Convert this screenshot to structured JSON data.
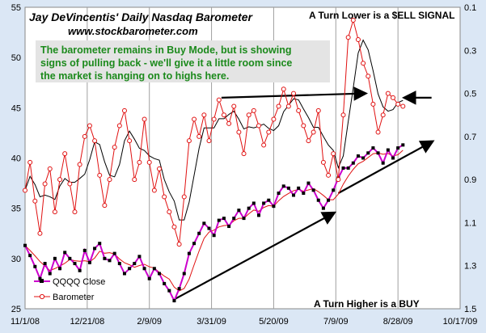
{
  "chart_data": {
    "type": "line",
    "title": "Jay DeVincentis' Daily Nasdaq Barometer",
    "subtitle": "www.stockbarometer.com",
    "left_axis": {
      "min": 25,
      "max": 55,
      "ticks": [
        "25",
        "30",
        "35",
        "40",
        "45",
        "50",
        "55"
      ]
    },
    "right_axis": {
      "min": 0.1,
      "max": 1.5,
      "inverted": true,
      "ticks": [
        "0.1",
        "0.3",
        "0.5",
        "0.7",
        "0.9",
        "1.1",
        "1.3",
        "1.5"
      ]
    },
    "x_ticks": [
      "11/1/08",
      "12/21/08",
      "2/9/09",
      "3/31/09",
      "5/20/09",
      "7/9/09",
      "8/28/09",
      "10/17/09"
    ],
    "x_tick_days": [
      0,
      50,
      100,
      150,
      200,
      250,
      300,
      350
    ],
    "grid": "vertical",
    "legend_position": "bottom-left",
    "series": [
      {
        "name": "QQQQ Close",
        "axis": "left",
        "color": "#cc00cc",
        "x": [
          0,
          4,
          8,
          12,
          16,
          20,
          24,
          28,
          32,
          36,
          40,
          44,
          48,
          52,
          56,
          60,
          64,
          68,
          72,
          76,
          80,
          84,
          88,
          92,
          96,
          100,
          104,
          108,
          112,
          116,
          120,
          124,
          128,
          132,
          136,
          140,
          144,
          148,
          152,
          156,
          160,
          164,
          168,
          172,
          176,
          180,
          184,
          188,
          192,
          196,
          200,
          204,
          208,
          212,
          216,
          220,
          224,
          228,
          232,
          236,
          240,
          244,
          248,
          252,
          256,
          260,
          264,
          268,
          272,
          276,
          280,
          284,
          288,
          292,
          296,
          300,
          304
        ],
        "values": [
          31.3,
          30.3,
          29.2,
          28.0,
          29.5,
          28.5,
          30.0,
          29.0,
          30.6,
          30.0,
          29.5,
          28.8,
          30.8,
          29.6,
          31.0,
          31.5,
          30.0,
          29.8,
          30.5,
          29.5,
          28.5,
          29.0,
          29.5,
          30.2,
          29.0,
          28.0,
          29.0,
          28.5,
          27.5,
          26.8,
          25.8,
          27.0,
          28.5,
          30.5,
          31.5,
          32.5,
          33.5,
          33.0,
          32.3,
          33.8,
          34.0,
          33.2,
          34.0,
          34.8,
          34.0,
          35.0,
          35.5,
          34.3,
          35.5,
          35.8,
          35.2,
          36.5,
          37.2,
          37.0,
          36.3,
          37.0,
          36.5,
          37.5,
          36.8,
          35.8,
          35.0,
          35.8,
          36.8,
          38.0,
          39.0,
          39.0,
          39.5,
          40.2,
          40.0,
          40.5,
          41.0,
          40.5,
          39.5,
          40.8,
          40.0,
          41.0,
          41.3
        ]
      },
      {
        "name": "Barometer",
        "axis": "right",
        "color": "#e01010",
        "x": [
          0,
          4,
          8,
          12,
          16,
          20,
          24,
          28,
          32,
          36,
          40,
          44,
          48,
          52,
          56,
          60,
          64,
          68,
          72,
          76,
          80,
          84,
          88,
          92,
          96,
          100,
          104,
          108,
          112,
          116,
          120,
          124,
          128,
          132,
          136,
          140,
          144,
          148,
          152,
          156,
          160,
          164,
          168,
          172,
          176,
          180,
          184,
          188,
          192,
          196,
          200,
          204,
          208,
          212,
          216,
          220,
          224,
          228,
          232,
          236,
          240,
          244,
          248,
          252,
          256,
          260,
          264,
          268,
          272,
          276,
          280,
          284,
          288,
          292,
          296,
          300,
          304
        ],
        "values": [
          0.95,
          0.82,
          1.0,
          1.15,
          0.92,
          0.85,
          1.05,
          0.9,
          0.78,
          0.92,
          1.05,
          0.83,
          0.7,
          0.65,
          0.72,
          0.88,
          1.02,
          0.9,
          0.75,
          0.65,
          0.58,
          0.72,
          0.9,
          0.82,
          0.62,
          0.82,
          0.95,
          0.85,
          0.98,
          1.05,
          1.12,
          1.2,
          0.98,
          0.72,
          0.62,
          0.7,
          0.6,
          0.72,
          0.62,
          0.53,
          0.6,
          0.64,
          0.56,
          0.68,
          0.78,
          0.6,
          0.58,
          0.65,
          0.74,
          0.68,
          0.62,
          0.56,
          0.48,
          0.56,
          0.5,
          0.58,
          0.65,
          0.72,
          0.68,
          0.58,
          0.82,
          0.88,
          0.78,
          0.9,
          0.6,
          0.24,
          0.16,
          0.25,
          0.36,
          0.42,
          0.55,
          0.68,
          0.6,
          0.5,
          0.52,
          0.55,
          0.56
        ]
      }
    ],
    "annotations": {
      "sell_signal": "A Turn Lower is a $ELL  SIGNAL",
      "buy_signal": "A Turn Higher is a BUY",
      "note_lines": [
        "The barometer remains in Buy Mode, but is showing",
        "signs of pulling back - we'll give it a little room since",
        "the market is hanging on to highs here."
      ]
    },
    "colors": {
      "background": "#dbe7f5",
      "plot": "#ffffff",
      "note_text": "#1c8a1c",
      "note_box": "#e4e4e4"
    }
  }
}
